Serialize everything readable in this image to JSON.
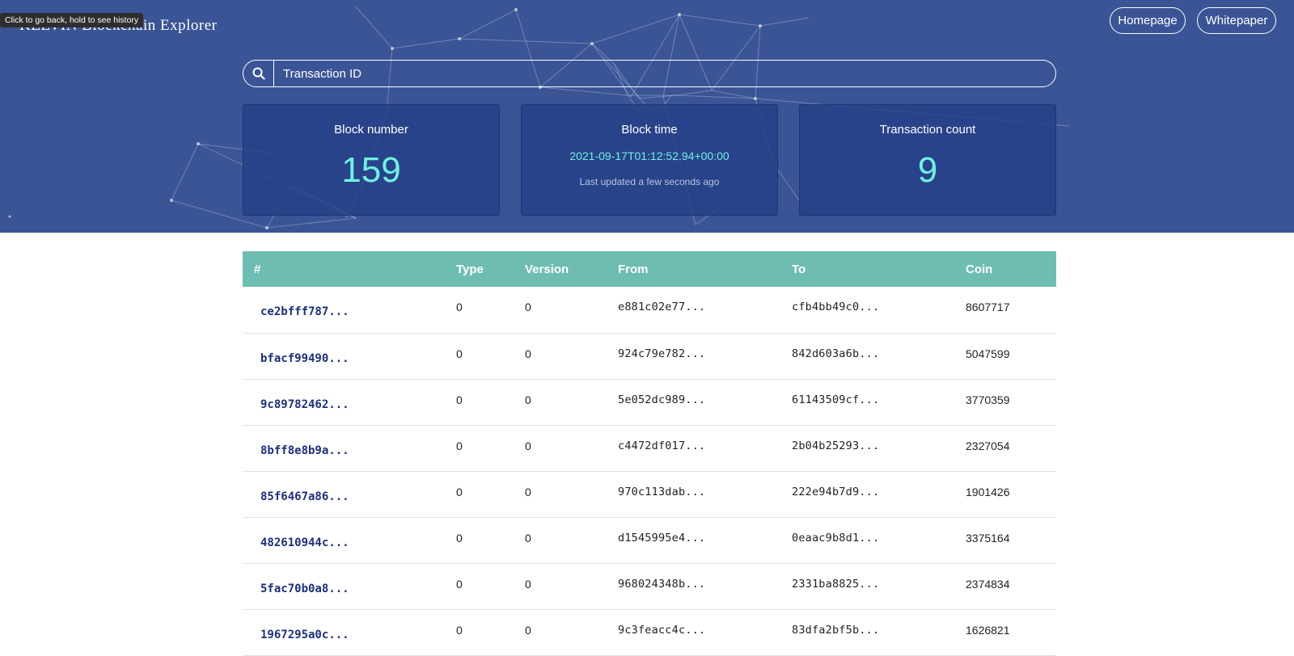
{
  "tooltip": "Click to go back, hold to see history",
  "brand": {
    "name": "KELVIN Blockchain Explorer"
  },
  "nav": {
    "homepage": "Homepage",
    "whitepaper": "Whitepaper"
  },
  "search": {
    "placeholder": "Transaction ID",
    "icon": "search-icon"
  },
  "stats": {
    "block_number": {
      "label": "Block number",
      "value": "159"
    },
    "block_time": {
      "label": "Block time",
      "value": "2021-09-17T01:12:52.94+00:00",
      "updated": "Last updated a few seconds ago"
    },
    "transaction_count": {
      "label": "Transaction count",
      "value": "9"
    }
  },
  "colors": {
    "header_bg": "#3a5495",
    "accent": "#6ff1e1",
    "table_head": "#6dbdb3",
    "link": "#1d2f7e"
  },
  "table": {
    "columns": [
      "#",
      "Type",
      "Version",
      "From",
      "To",
      "Coin"
    ],
    "rows": [
      {
        "id": "ce2bfff787...",
        "type": "0",
        "version": "0",
        "from": "e881c02e77...",
        "to": "cfb4bb49c0...",
        "coin": "8607717"
      },
      {
        "id": "bfacf99490...",
        "type": "0",
        "version": "0",
        "from": "924c79e782...",
        "to": "842d603a6b...",
        "coin": "5047599"
      },
      {
        "id": "9c89782462...",
        "type": "0",
        "version": "0",
        "from": "5e052dc989...",
        "to": "61143509cf...",
        "coin": "3770359"
      },
      {
        "id": "8bff8e8b9a...",
        "type": "0",
        "version": "0",
        "from": "c4472df017...",
        "to": "2b04b25293...",
        "coin": "2327054"
      },
      {
        "id": "85f6467a86...",
        "type": "0",
        "version": "0",
        "from": "970c113dab...",
        "to": "222e94b7d9...",
        "coin": "1901426"
      },
      {
        "id": "482610944c...",
        "type": "0",
        "version": "0",
        "from": "d1545995e4...",
        "to": "0eaac9b8d1...",
        "coin": "3375164"
      },
      {
        "id": "5fac70b0a8...",
        "type": "0",
        "version": "0",
        "from": "968024348b...",
        "to": "2331ba8825...",
        "coin": "2374834"
      },
      {
        "id": "1967295a0c...",
        "type": "0",
        "version": "0",
        "from": "9c3feacc4c...",
        "to": "83dfa2bf5b...",
        "coin": "1626821"
      }
    ]
  }
}
